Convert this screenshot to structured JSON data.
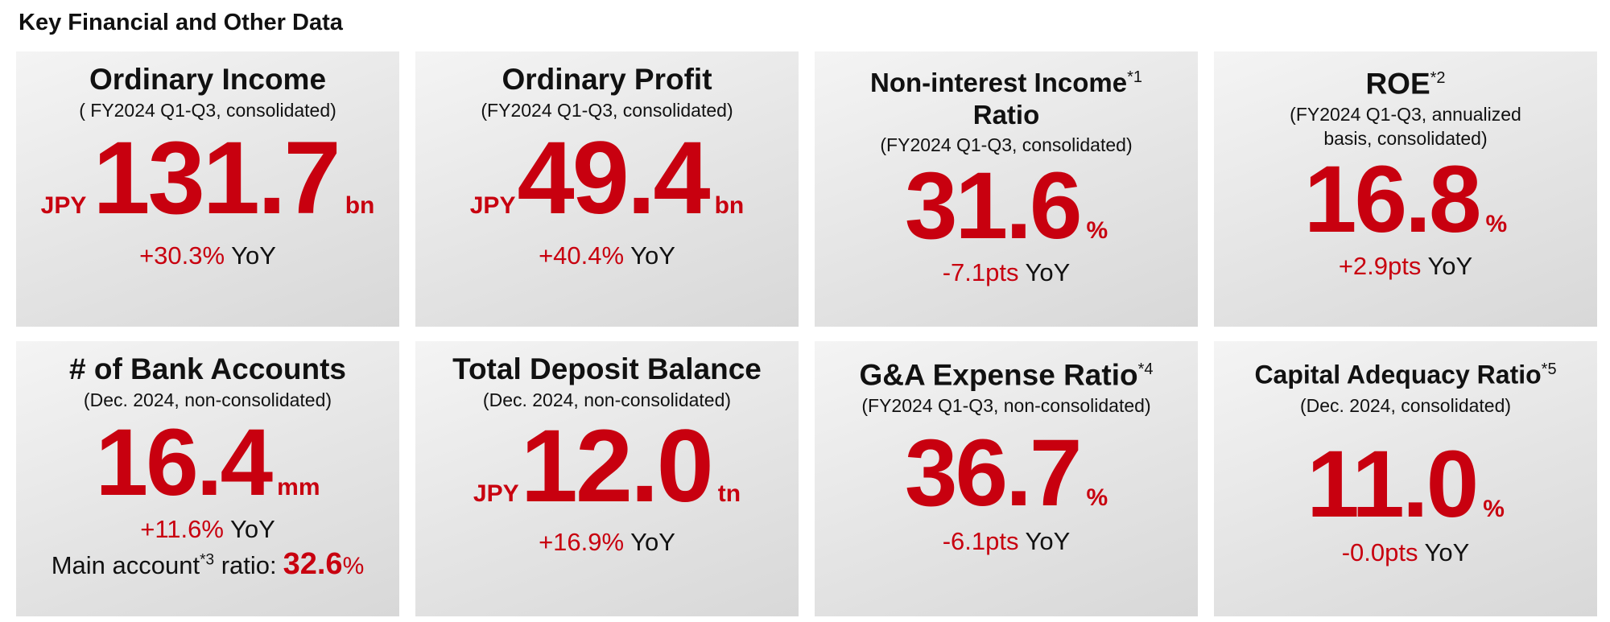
{
  "page_title": "Key Financial and Other Data",
  "cards": [
    {
      "title": "Ordinary Income",
      "note": "",
      "subtitle": "( FY2024 Q1-Q3, consolidated)",
      "prefix": "JPY",
      "value": "131.7",
      "suffix": "bn",
      "change": "+30.3%",
      "yoy": "YoY"
    },
    {
      "title": "Ordinary Profit",
      "note": "",
      "subtitle": "(FY2024 Q1-Q3, consolidated)",
      "prefix": "JPY",
      "value": "49.4",
      "suffix": "bn",
      "change": "+40.4%",
      "yoy": "YoY"
    },
    {
      "title": "Non-interest Income Ratio",
      "note": "*1",
      "subtitle": "(FY2024 Q1-Q3, consolidated)",
      "prefix": "",
      "value": "31.6",
      "suffix": "%",
      "change": "-7.1pts",
      "yoy": "YoY"
    },
    {
      "title": "ROE",
      "note": "*2",
      "subtitle": "(FY2024 Q1-Q3, annualized basis,  consolidated)",
      "prefix": "",
      "value": "16.8",
      "suffix": "%",
      "change": "+2.9pts",
      "yoy": "YoY"
    },
    {
      "title": "# of Bank Accounts",
      "note": "",
      "subtitle": "(Dec. 2024, non-consolidated)",
      "prefix": "",
      "value": "16.4",
      "suffix": "mm",
      "change": "+11.6%",
      "yoy": "YoY",
      "extra": {
        "label": "Main account",
        "note": "*3",
        "label_tail": " ratio:",
        "value": "32.6",
        "unit": "%"
      }
    },
    {
      "title": "Total Deposit Balance",
      "note": "",
      "subtitle": "(Dec. 2024, non-consolidated)",
      "prefix": "JPY",
      "value": "12.0",
      "suffix": "tn",
      "change": "+16.9%",
      "yoy": "YoY"
    },
    {
      "title": "G&A Expense Ratio",
      "note": "*4",
      "subtitle": "(FY2024 Q1-Q3, non-consolidated)",
      "prefix": "",
      "value": "36.7",
      "suffix": "%",
      "change": "-6.1pts",
      "yoy": "YoY"
    },
    {
      "title": "Capital Adequacy Ratio",
      "note": "*5",
      "subtitle": "(Dec. 2024, consolidated)",
      "prefix": "",
      "value": "11.0",
      "suffix": "%",
      "change": "-0.0pts",
      "yoy": "YoY"
    }
  ],
  "colors": {
    "accent": "#c8000f",
    "text": "#111111",
    "card_bg": "#e6e6e6"
  }
}
